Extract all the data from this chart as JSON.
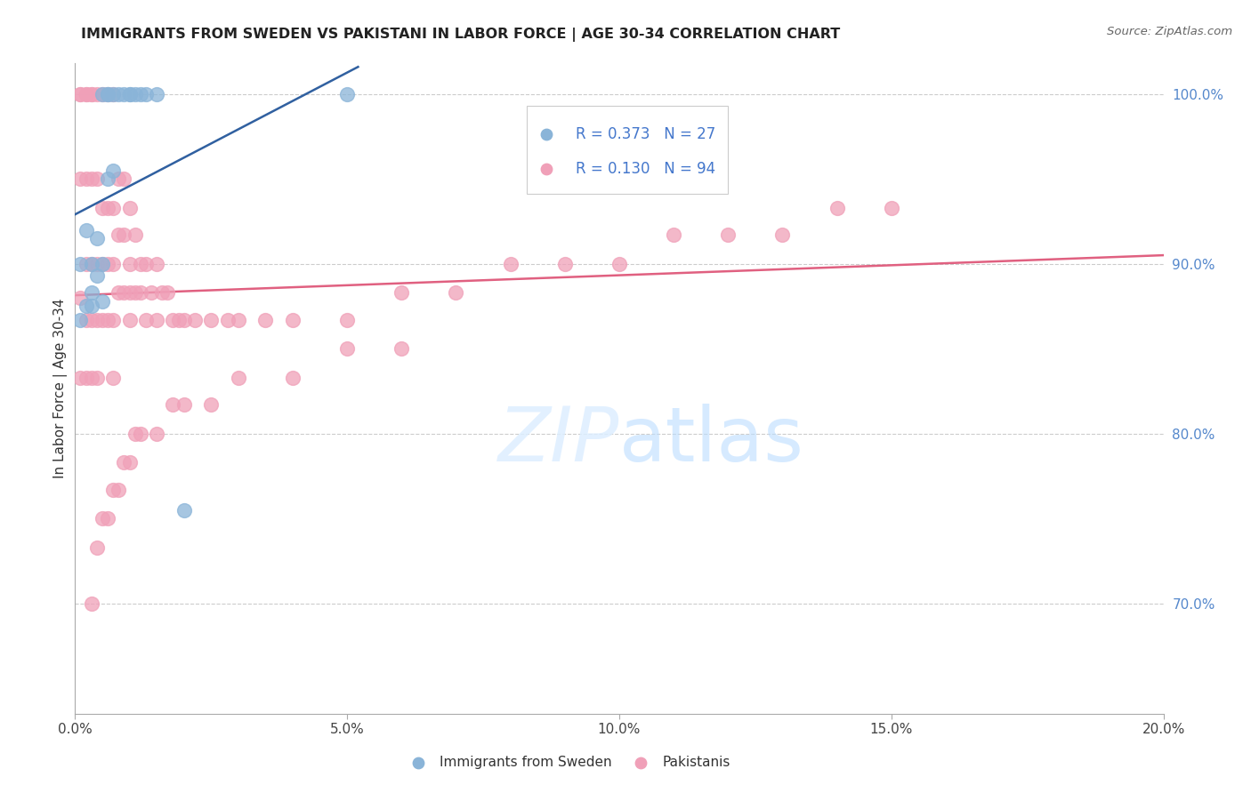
{
  "title": "IMMIGRANTS FROM SWEDEN VS PAKISTANI IN LABOR FORCE | AGE 30-34 CORRELATION CHART",
  "source": "Source: ZipAtlas.com",
  "ylabel": "In Labor Force | Age 30-34",
  "legend_sweden": "Immigrants from Sweden",
  "legend_pakistan": "Pakistanis",
  "R_sweden": 0.373,
  "N_sweden": 27,
  "R_pakistan": 0.13,
  "N_pakistan": 94,
  "color_sweden": "#8ab4d8",
  "color_pakistan": "#f0a0b8",
  "line_color_sweden": "#3060a0",
  "line_color_pakistan": "#e06080",
  "legend_text_color": "#4477cc",
  "right_axis_color": "#5588cc",
  "xlim": [
    0.0,
    0.2
  ],
  "ylim": [
    0.635,
    1.018
  ],
  "yticks": [
    0.7,
    0.8,
    0.9,
    1.0
  ],
  "ytick_labels": [
    "70.0%",
    "80.0%",
    "90.0%",
    "100.0%"
  ],
  "xticks": [
    0.0,
    0.05,
    0.1,
    0.15,
    0.2
  ],
  "xtick_labels": [
    "0.0%",
    "5.0%",
    "10.0%",
    "15.0%",
    "20.0%"
  ],
  "grid_color": "#cccccc",
  "background_color": "#ffffff",
  "sweden_x": [
    0.001,
    0.001,
    0.002,
    0.002,
    0.003,
    0.003,
    0.003,
    0.004,
    0.004,
    0.005,
    0.005,
    0.005,
    0.006,
    0.006,
    0.006,
    0.007,
    0.007,
    0.008,
    0.009,
    0.01,
    0.01,
    0.011,
    0.012,
    0.013,
    0.015,
    0.02,
    0.05
  ],
  "sweden_y": [
    0.867,
    0.9,
    0.875,
    0.92,
    0.883,
    0.9,
    0.875,
    0.893,
    0.915,
    0.878,
    0.9,
    1.0,
    1.0,
    1.0,
    0.95,
    0.955,
    1.0,
    1.0,
    1.0,
    1.0,
    1.0,
    1.0,
    1.0,
    1.0,
    1.0,
    0.755,
    1.0
  ],
  "pakistan_x": [
    0.001,
    0.001,
    0.001,
    0.001,
    0.001,
    0.002,
    0.002,
    0.002,
    0.002,
    0.002,
    0.002,
    0.003,
    0.003,
    0.003,
    0.003,
    0.003,
    0.003,
    0.004,
    0.004,
    0.004,
    0.004,
    0.004,
    0.005,
    0.005,
    0.005,
    0.005,
    0.006,
    0.006,
    0.006,
    0.006,
    0.007,
    0.007,
    0.007,
    0.007,
    0.007,
    0.008,
    0.008,
    0.008,
    0.009,
    0.009,
    0.009,
    0.01,
    0.01,
    0.01,
    0.01,
    0.011,
    0.011,
    0.012,
    0.012,
    0.013,
    0.013,
    0.014,
    0.015,
    0.015,
    0.016,
    0.017,
    0.018,
    0.019,
    0.02,
    0.022,
    0.025,
    0.028,
    0.03,
    0.035,
    0.04,
    0.05,
    0.06,
    0.07,
    0.08,
    0.09,
    0.1,
    0.11,
    0.12,
    0.13,
    0.14,
    0.15,
    0.003,
    0.004,
    0.005,
    0.006,
    0.007,
    0.008,
    0.009,
    0.01,
    0.011,
    0.012,
    0.015,
    0.018,
    0.02,
    0.025,
    0.03,
    0.04,
    0.05,
    0.06
  ],
  "pakistan_y": [
    1.0,
    1.0,
    0.95,
    0.88,
    0.833,
    1.0,
    1.0,
    0.95,
    0.9,
    0.867,
    0.833,
    1.0,
    1.0,
    0.95,
    0.9,
    0.867,
    0.833,
    1.0,
    0.95,
    0.9,
    0.867,
    0.833,
    1.0,
    0.933,
    0.9,
    0.867,
    1.0,
    0.933,
    0.9,
    0.867,
    1.0,
    0.933,
    0.9,
    0.867,
    0.833,
    0.95,
    0.917,
    0.883,
    0.95,
    0.917,
    0.883,
    0.933,
    0.9,
    0.883,
    0.867,
    0.917,
    0.883,
    0.9,
    0.883,
    0.9,
    0.867,
    0.883,
    0.9,
    0.867,
    0.883,
    0.883,
    0.867,
    0.867,
    0.867,
    0.867,
    0.867,
    0.867,
    0.867,
    0.867,
    0.867,
    0.867,
    0.883,
    0.883,
    0.9,
    0.9,
    0.9,
    0.917,
    0.917,
    0.917,
    0.933,
    0.933,
    0.7,
    0.733,
    0.75,
    0.75,
    0.767,
    0.767,
    0.783,
    0.783,
    0.8,
    0.8,
    0.8,
    0.817,
    0.817,
    0.817,
    0.833,
    0.833,
    0.85,
    0.85
  ]
}
